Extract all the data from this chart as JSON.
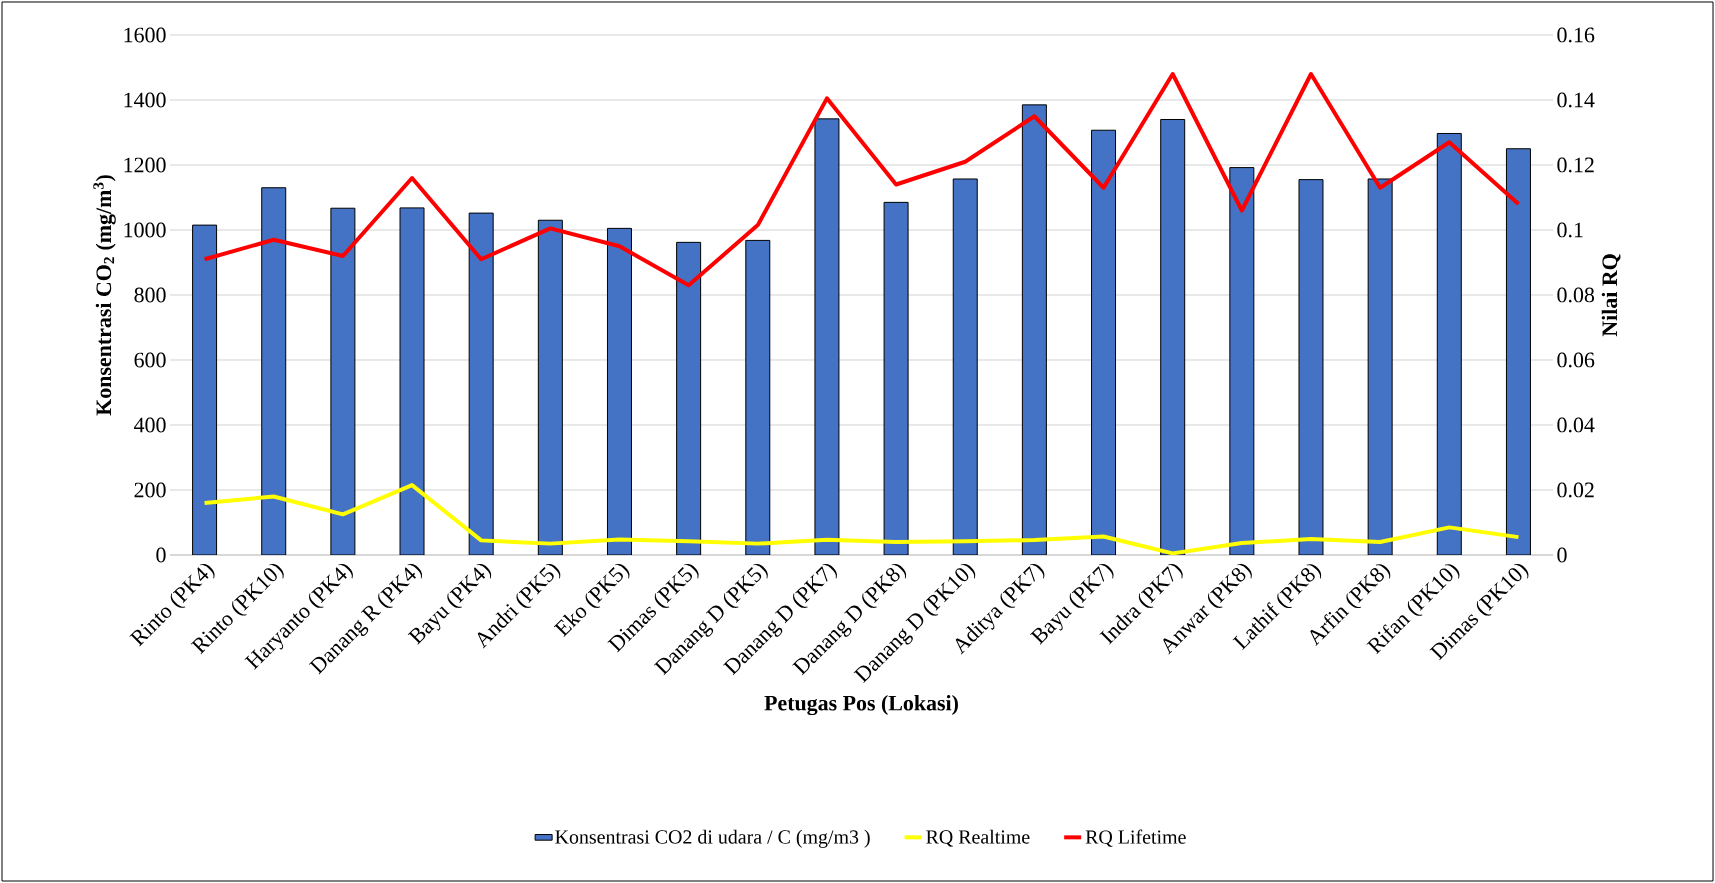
{
  "chart_data": {
    "type": "bar",
    "xlabel": "Petugas Pos (Lokasi)",
    "ylabel": "Konsentrasi CO$_{2}$ (mg/m$^{3}$)",
    "y2label": "Nilai RQ",
    "categories": [
      "Rinto (PK4)",
      "Rinto (PK10)",
      "Haryanto (PK4)",
      "Danang R (PK4)",
      "Bayu (PK4)",
      "Andri (PK5)",
      "Eko (PK5)",
      "Dimas (PK5)",
      "Danang D (PK5)",
      "Danang D (PK7)",
      "Danang D (PK8)",
      "Danang D (PK10)",
      "Aditya (PK7)",
      "Bayu (PK7)",
      "Indra (PK7)",
      "Anwar (PK8)",
      "Lathif (PK8)",
      "Arfin (PK8)",
      "Rifan (PK10)",
      "Dimas (PK10)"
    ],
    "series": [
      {
        "name": "Konsentrasi CO2 di udara / C (mg/m3 )",
        "color": "#4472c4",
        "values": [
          1015,
          1130,
          1067,
          1068,
          1052,
          1030,
          1005,
          962,
          968,
          1342,
          1085,
          1157,
          1385,
          1307,
          1340,
          1192,
          1155,
          1157,
          1297,
          1250
        ]
      },
      {
        "name": "RQ Realtime",
        "color": "#ffff00",
        "type": "line",
        "axis": "y2",
        "values": [
          0.016,
          0.018,
          0.0125,
          0.0215,
          0.0045,
          0.0035,
          0.0048,
          0.0042,
          0.0035,
          0.0047,
          0.004,
          0.0042,
          0.0046,
          0.0057,
          0.0005,
          0.0037,
          0.0049,
          0.004,
          0.0085,
          0.0055
        ]
      },
      {
        "name": "RQ Lifetime",
        "color": "#ff0000",
        "type": "line",
        "axis": "y2",
        "values": [
          0.091,
          0.097,
          0.092,
          0.116,
          0.091,
          0.1005,
          0.095,
          0.083,
          0.1015,
          0.1405,
          0.114,
          0.121,
          0.135,
          0.113,
          0.148,
          0.106,
          0.148,
          0.113,
          0.127,
          0.108
        ]
      }
    ],
    "ylim": [
      0,
      1600
    ],
    "yticks": [
      0,
      200,
      400,
      600,
      800,
      1000,
      1200,
      1400,
      1600
    ],
    "y2lim": [
      0,
      0.16
    ],
    "y2ticks": [
      0,
      0.02,
      0.04,
      0.06,
      0.08,
      0.1,
      0.12,
      0.14,
      0.16
    ],
    "grid": "y",
    "legend": "bottom",
    "marker": "none",
    "line_style": "solid"
  }
}
